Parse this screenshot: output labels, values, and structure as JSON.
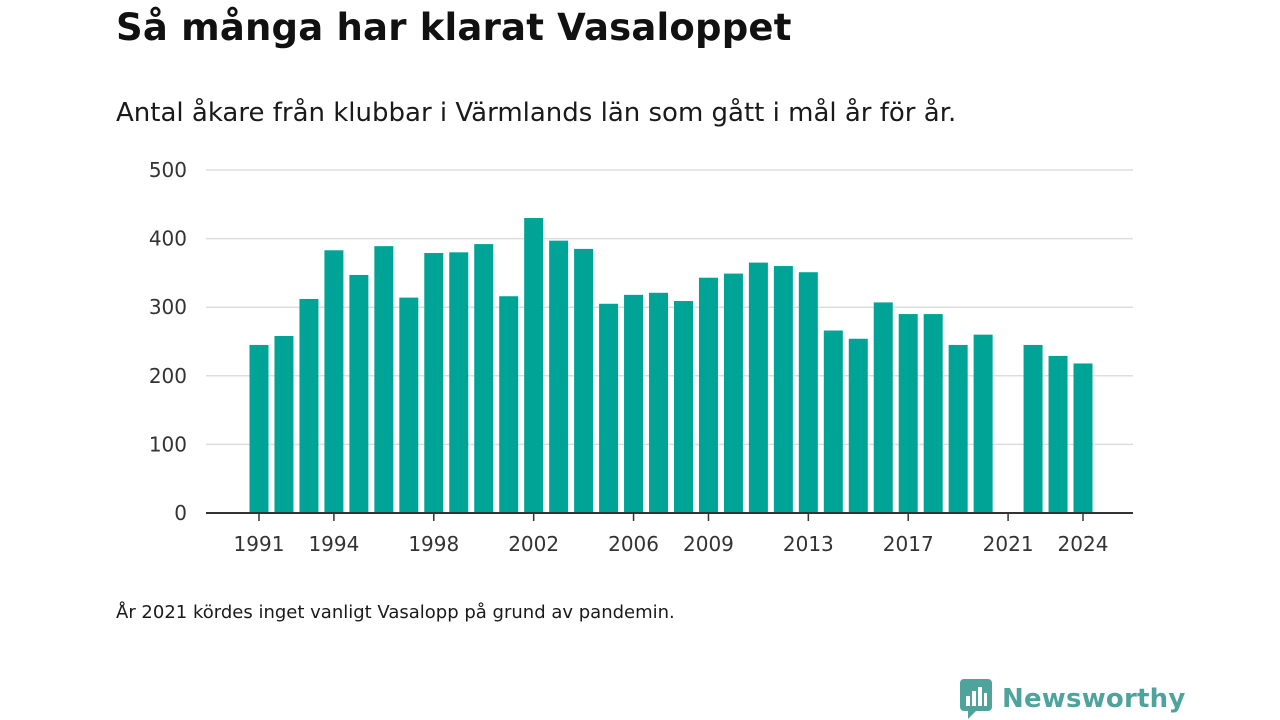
{
  "title": "Så många har klarat Vasaloppet",
  "subtitle": "Antal åkare från klubbar i Värmlands län som gått i mål år för år.",
  "note": "År 2021 kördes inget vanligt Vasalopp på grund av pandemin.",
  "brand": {
    "name": "Newsworthy",
    "icon": "newsworthy-logo-icon",
    "color": "#4fa39d"
  },
  "colors": {
    "bar": "#00a497",
    "grid": "#dddddd",
    "axis": "#333333"
  },
  "chart_data": {
    "type": "bar",
    "x": [
      1991,
      1992,
      1993,
      1994,
      1995,
      1996,
      1997,
      1998,
      1999,
      2000,
      2001,
      2002,
      2003,
      2004,
      2005,
      2006,
      2007,
      2008,
      2009,
      2010,
      2011,
      2012,
      2013,
      2014,
      2015,
      2016,
      2017,
      2018,
      2019,
      2020,
      2021,
      2022,
      2023,
      2024
    ],
    "values": [
      245,
      258,
      312,
      383,
      347,
      389,
      314,
      379,
      380,
      392,
      316,
      430,
      397,
      385,
      305,
      318,
      321,
      309,
      343,
      349,
      365,
      360,
      351,
      266,
      254,
      307,
      290,
      290,
      245,
      260,
      null,
      245,
      229,
      218
    ],
    "x_ticks": [
      "1991",
      "1994",
      "1998",
      "2002",
      "2006",
      "2009",
      "2013",
      "2017",
      "2021",
      "2024"
    ],
    "y_ticks": [
      "0",
      "100",
      "200",
      "300",
      "400",
      "500"
    ],
    "ylim": [
      0,
      500
    ],
    "grid": true,
    "title": "Så många har klarat Vasaloppet",
    "subtitle": "Antal åkare från klubbar i Värmlands län som gått i mål år för år.",
    "xlabel": "",
    "ylabel": ""
  }
}
